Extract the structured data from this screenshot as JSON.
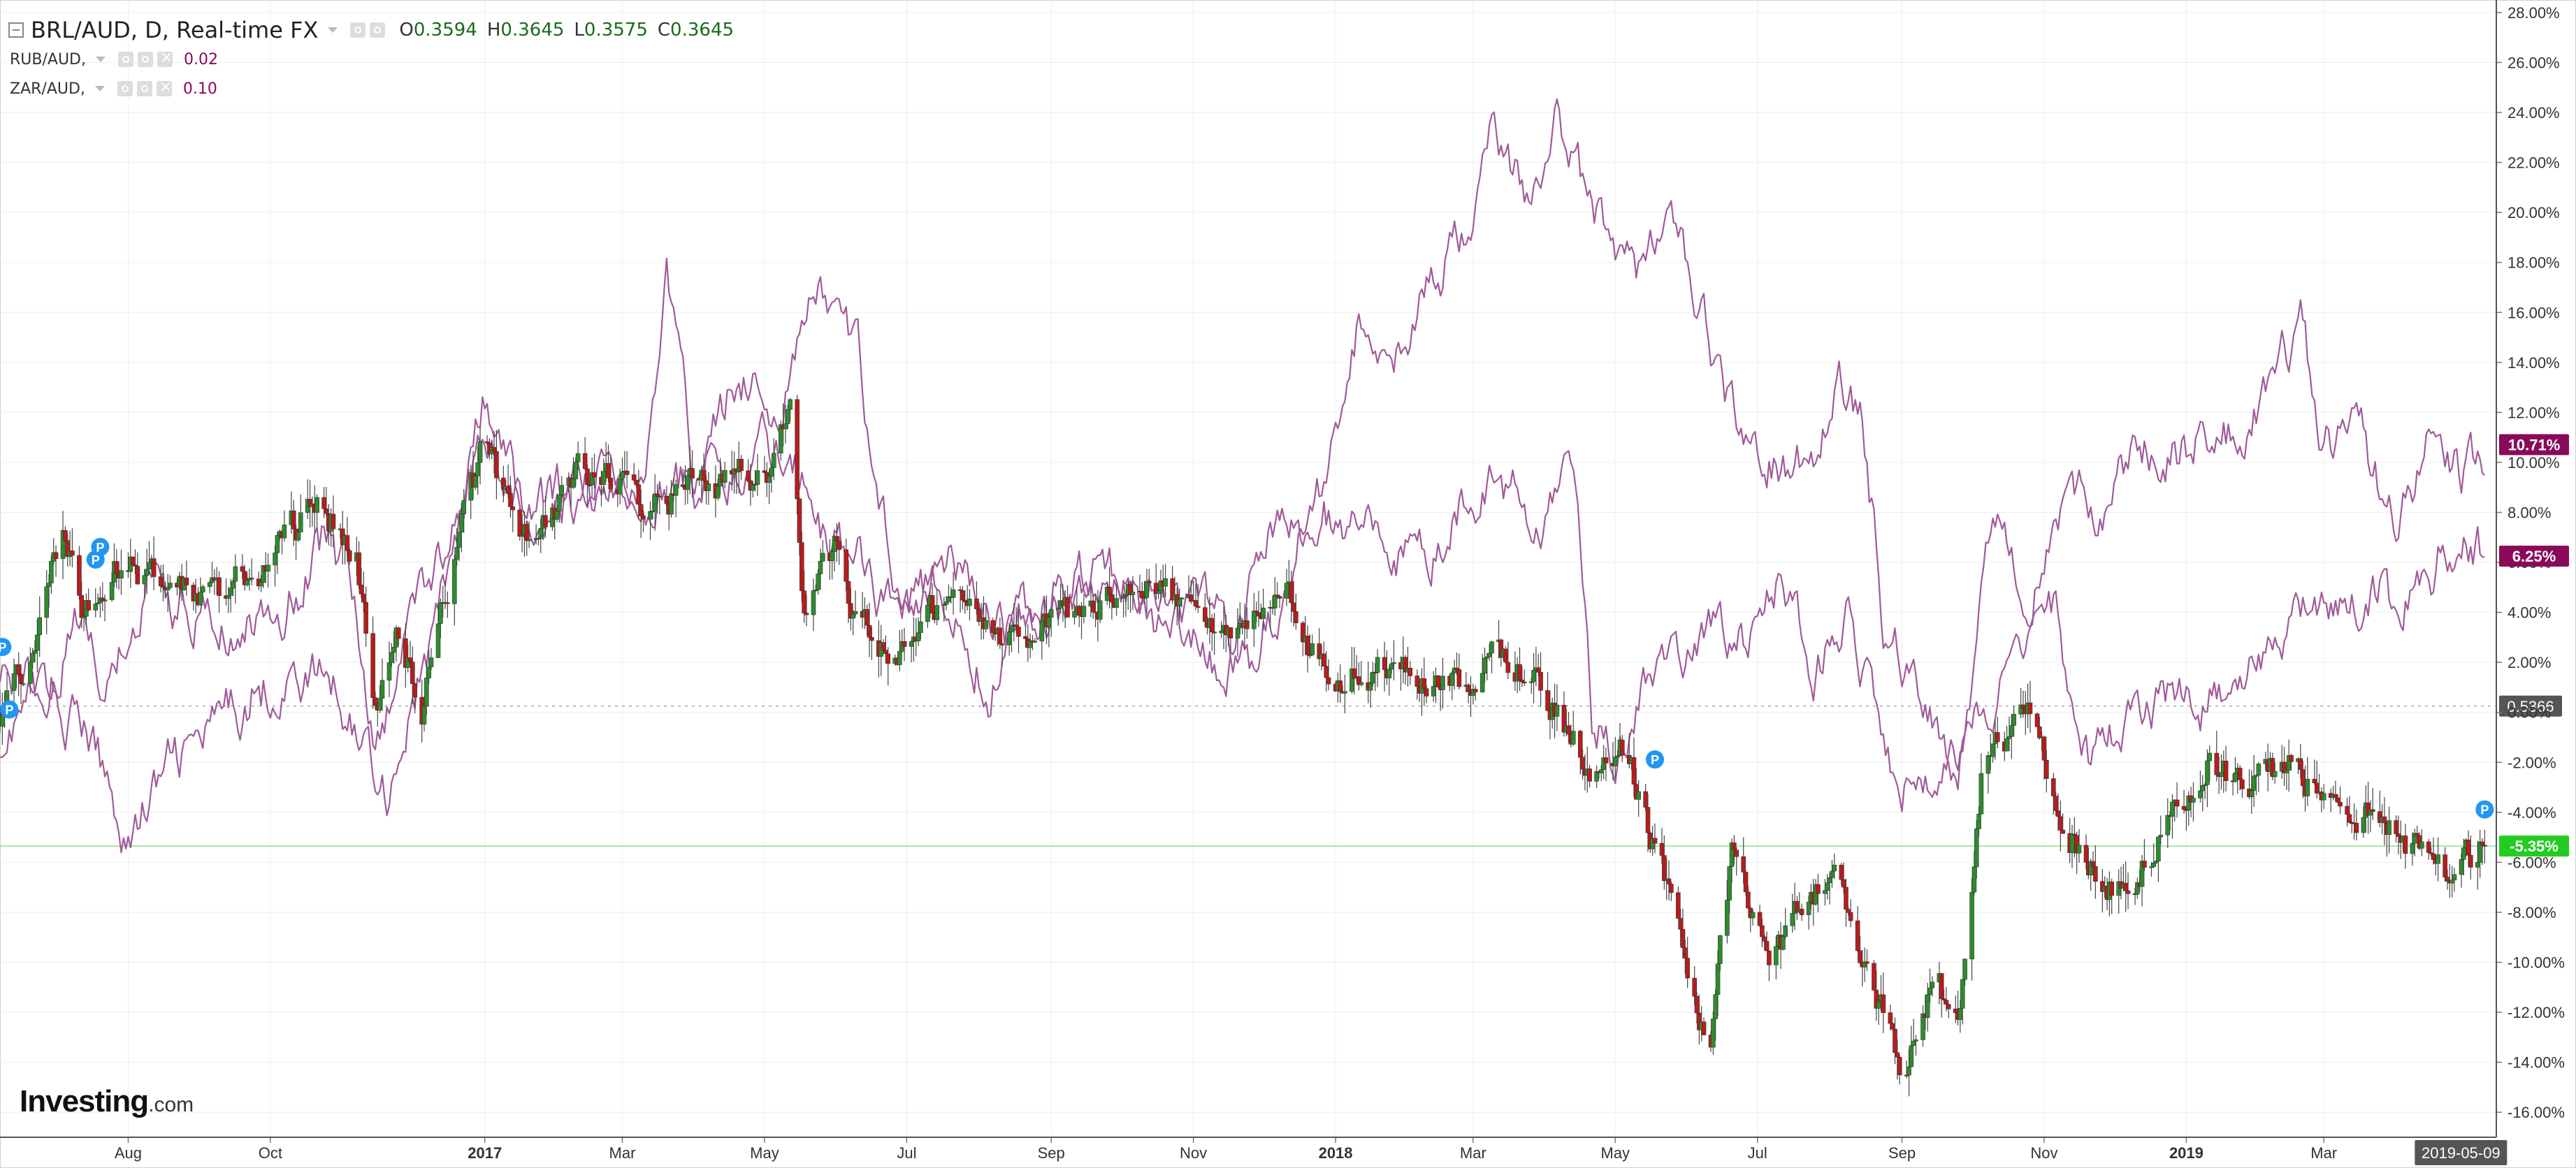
{
  "legend": {
    "title": "BRL/AUD, D, Real-time FX",
    "ohlc": [
      {
        "k": "O",
        "v": "0.3594"
      },
      {
        "k": "H",
        "v": "0.3645"
      },
      {
        "k": "L",
        "v": "0.3575"
      },
      {
        "k": "C",
        "v": "0.3645"
      }
    ],
    "indicators": [
      {
        "name": "RUB/AUD,",
        "value": "0.02"
      },
      {
        "name": "ZAR/AUD,",
        "value": "0.10"
      }
    ]
  },
  "logo": {
    "brand": "Investing",
    "suffix": ".com"
  },
  "colors": {
    "up": "#2e8b2e",
    "down": "#b81c1c",
    "compare": "#a05a9a",
    "lastTag": "#8a0a5a",
    "greenTag": "#22cc22",
    "grid": "#eeeeee"
  },
  "chart_data": {
    "type": "line",
    "ylim": [
      -17,
      28.5
    ],
    "y_ticks": [
      "28.00%",
      "26.00%",
      "24.00%",
      "22.00%",
      "20.00%",
      "18.00%",
      "16.00%",
      "14.00%",
      "12.00%",
      "10.00%",
      "8.00%",
      "6.00%",
      "4.00%",
      "2.00%",
      "0.00%",
      "-2.00%",
      "-4.00%",
      "-6.00%",
      "-8.00%",
      "-10.00%",
      "-12.00%",
      "-14.00%",
      "-16.00%"
    ],
    "x_ticks": [
      {
        "label": "Aug",
        "date": "2016-08-01",
        "bold": false
      },
      {
        "label": "Oct",
        "date": "2016-10-01",
        "bold": false
      },
      {
        "label": "2017",
        "date": "2017-01-01",
        "bold": true
      },
      {
        "label": "Mar",
        "date": "2017-03-01",
        "bold": false
      },
      {
        "label": "May",
        "date": "2017-05-01",
        "bold": false
      },
      {
        "label": "Jul",
        "date": "2017-07-01",
        "bold": false
      },
      {
        "label": "Sep",
        "date": "2017-09-01",
        "bold": false
      },
      {
        "label": "Nov",
        "date": "2017-11-01",
        "bold": false
      },
      {
        "label": "2018",
        "date": "2018-01-01",
        "bold": true
      },
      {
        "label": "Mar",
        "date": "2018-03-01",
        "bold": false
      },
      {
        "label": "May",
        "date": "2018-05-01",
        "bold": false
      },
      {
        "label": "Jul",
        "date": "2018-07-01",
        "bold": false
      },
      {
        "label": "Sep",
        "date": "2018-09-01",
        "bold": false
      },
      {
        "label": "Nov",
        "date": "2018-11-01",
        "bold": false
      },
      {
        "label": "2019",
        "date": "2019-01-01",
        "bold": true
      },
      {
        "label": "Mar",
        "date": "2019-03-01",
        "bold": false
      }
    ],
    "x_start": "2016-06-07",
    "x_end": "2019-05-14",
    "cursor_date_label": "2019-05-09",
    "price_line": {
      "value": 0.5366,
      "pct": 0.25,
      "label": "0.5366"
    },
    "last_tags": [
      {
        "label": "10.71%",
        "value": 10.71,
        "color": "#8a0a5a"
      },
      {
        "label": "6.25%",
        "value": 6.25,
        "color": "#8a0a5a"
      },
      {
        "label": "-5.35%",
        "value": -5.35,
        "color": "#22cc22"
      }
    ],
    "brl_candles_anchor": [
      [
        "2016-06-07",
        0
      ],
      [
        "2016-06-20",
        1.5
      ],
      [
        "2016-07-03",
        7.5
      ],
      [
        "2016-07-12",
        4
      ],
      [
        "2016-07-25",
        6
      ],
      [
        "2016-08-08",
        5.5
      ],
      [
        "2016-09-05",
        4.5
      ],
      [
        "2016-09-30",
        6
      ],
      [
        "2016-10-20",
        8.5
      ],
      [
        "2016-11-07",
        6.5
      ],
      [
        "2016-11-15",
        0.5
      ],
      [
        "2016-11-25",
        3
      ],
      [
        "2016-12-05",
        0.5
      ],
      [
        "2016-12-14",
        4
      ],
      [
        "2016-12-31",
        10.5
      ],
      [
        "2017-01-20",
        7
      ],
      [
        "2017-02-10",
        9.5
      ],
      [
        "2017-03-10",
        8.5
      ],
      [
        "2017-04-10",
        9
      ],
      [
        "2017-05-05",
        10
      ],
      [
        "2017-05-12",
        12
      ],
      [
        "2017-05-18",
        4
      ],
      [
        "2017-06-01",
        6.5
      ],
      [
        "2017-06-10",
        3.5
      ],
      [
        "2017-06-25",
        2.5
      ],
      [
        "2017-07-15",
        4.5
      ],
      [
        "2017-08-15",
        3
      ],
      [
        "2017-09-15",
        4
      ],
      [
        "2017-10-15",
        5.5
      ],
      [
        "2017-11-10",
        3
      ],
      [
        "2017-12-10",
        5.5
      ],
      [
        "2017-12-20",
        3
      ],
      [
        "2017-12-31",
        1.5
      ],
      [
        "2018-01-25",
        2
      ],
      [
        "2018-02-20",
        1
      ],
      [
        "2018-03-10",
        2.5
      ],
      [
        "2018-03-25",
        1.5
      ],
      [
        "2018-04-10",
        -0.5
      ],
      [
        "2018-04-20",
        -2
      ],
      [
        "2018-05-05",
        -1.5
      ],
      [
        "2018-05-20",
        -6
      ],
      [
        "2018-06-10",
        -13.5
      ],
      [
        "2018-06-20",
        -6
      ],
      [
        "2018-07-05",
        -10
      ],
      [
        "2018-07-20",
        -8
      ],
      [
        "2018-08-01",
        -6
      ],
      [
        "2018-08-15",
        -9.5
      ],
      [
        "2018-09-01",
        -14
      ],
      [
        "2018-09-15",
        -11
      ],
      [
        "2018-09-25",
        -12.5
      ],
      [
        "2018-10-05",
        -2.5
      ],
      [
        "2018-10-25",
        0
      ],
      [
        "2018-11-05",
        -3.5
      ],
      [
        "2018-11-25",
        -7
      ],
      [
        "2018-12-10",
        -6.5
      ],
      [
        "2018-12-25",
        -4.5
      ],
      [
        "2019-01-10",
        -2
      ],
      [
        "2019-01-25",
        -3
      ],
      [
        "2019-02-15",
        -2
      ],
      [
        "2019-03-01",
        -3
      ],
      [
        "2019-03-25",
        -4.5
      ],
      [
        "2019-04-10",
        -5.5
      ],
      [
        "2019-04-25",
        -6.5
      ],
      [
        "2019-05-09",
        -5.35
      ]
    ],
    "series": [
      {
        "color": "#a05a9a",
        "anchor": [
          [
            "2016-06-07",
            -1
          ],
          [
            "2016-06-25",
            1
          ],
          [
            "2016-07-15",
            -1
          ],
          [
            "2016-08-01",
            -5
          ],
          [
            "2016-08-20",
            -2
          ],
          [
            "2016-09-05",
            -1
          ],
          [
            "2016-09-25",
            1
          ],
          [
            "2016-10-25",
            1.5
          ],
          [
            "2016-11-10",
            -1
          ],
          [
            "2016-11-20",
            -3
          ],
          [
            "2016-12-10",
            3
          ],
          [
            "2016-12-31",
            12
          ],
          [
            "2017-01-20",
            8
          ],
          [
            "2017-02-20",
            10
          ],
          [
            "2017-03-10",
            9
          ],
          [
            "2017-03-20",
            17.5
          ],
          [
            "2017-04-01",
            9
          ],
          [
            "2017-04-20",
            14
          ],
          [
            "2017-05-05",
            12
          ],
          [
            "2017-05-18",
            15
          ],
          [
            "2017-05-25",
            17
          ],
          [
            "2017-06-10",
            14
          ],
          [
            "2017-06-25",
            6
          ],
          [
            "2017-07-10",
            5
          ],
          [
            "2017-07-25",
            3
          ],
          [
            "2017-08-05",
            1
          ],
          [
            "2017-08-20",
            4
          ],
          [
            "2017-09-20",
            5
          ],
          [
            "2017-10-20",
            4
          ],
          [
            "2017-11-10",
            4
          ],
          [
            "2017-11-25",
            2
          ],
          [
            "2017-12-10",
            5
          ],
          [
            "2017-12-25",
            9
          ],
          [
            "2018-01-01",
            11
          ],
          [
            "2018-01-10",
            15
          ],
          [
            "2018-02-01",
            15
          ],
          [
            "2018-03-01",
            20
          ],
          [
            "2018-03-10",
            23
          ],
          [
            "2018-03-25",
            20.5
          ],
          [
            "2018-04-07",
            24
          ],
          [
            "2018-04-20",
            20
          ],
          [
            "2018-05-10",
            18
          ],
          [
            "2018-05-25",
            19.5
          ],
          [
            "2018-06-10",
            15
          ],
          [
            "2018-06-25",
            10.5
          ],
          [
            "2018-07-10",
            10
          ],
          [
            "2018-07-25",
            10.5
          ],
          [
            "2018-08-05",
            13.5
          ],
          [
            "2018-08-15",
            12
          ],
          [
            "2018-08-25",
            3
          ],
          [
            "2018-09-10",
            1
          ],
          [
            "2018-09-25",
            -2.5
          ],
          [
            "2018-10-10",
            8
          ],
          [
            "2018-10-25",
            5
          ],
          [
            "2018-11-10",
            9
          ],
          [
            "2018-11-25",
            8
          ],
          [
            "2018-12-10",
            11
          ],
          [
            "2018-12-25",
            10
          ],
          [
            "2019-01-10",
            11
          ],
          [
            "2019-01-25",
            11
          ],
          [
            "2019-02-10",
            14
          ],
          [
            "2019-02-20",
            15.5
          ],
          [
            "2019-03-01",
            10.5
          ],
          [
            "2019-03-15",
            11
          ],
          [
            "2019-04-01",
            8
          ],
          [
            "2019-04-15",
            11
          ],
          [
            "2019-04-30",
            9.5
          ],
          [
            "2019-05-09",
            10.71
          ]
        ]
      },
      {
        "color": "#a05a9a",
        "anchor": [
          [
            "2016-06-07",
            2
          ],
          [
            "2016-06-25",
            1
          ],
          [
            "2016-07-10",
            3.5
          ],
          [
            "2016-07-25",
            1
          ],
          [
            "2016-08-10",
            5
          ],
          [
            "2016-08-25",
            4
          ],
          [
            "2016-09-15",
            3
          ],
          [
            "2016-10-05",
            4
          ],
          [
            "2016-10-25",
            7
          ],
          [
            "2016-11-05",
            5
          ],
          [
            "2016-11-15",
            -1
          ],
          [
            "2016-12-05",
            5
          ],
          [
            "2016-12-31",
            10.5
          ],
          [
            "2017-01-20",
            8
          ],
          [
            "2017-02-20",
            9
          ],
          [
            "2017-03-20",
            9
          ],
          [
            "2017-04-20",
            9.5
          ],
          [
            "2017-05-10",
            11
          ],
          [
            "2017-05-25",
            7
          ],
          [
            "2017-06-10",
            6
          ],
          [
            "2017-06-25",
            4
          ],
          [
            "2017-07-10",
            5
          ],
          [
            "2017-07-20",
            6
          ],
          [
            "2017-07-30",
            5
          ],
          [
            "2017-08-15",
            3
          ],
          [
            "2017-09-05",
            5
          ],
          [
            "2017-09-25",
            6
          ],
          [
            "2017-10-15",
            3
          ],
          [
            "2017-10-30",
            3
          ],
          [
            "2017-11-15",
            1.5
          ],
          [
            "2017-11-30",
            7
          ],
          [
            "2017-12-15",
            7.5
          ],
          [
            "2017-12-31",
            8
          ],
          [
            "2018-01-20",
            7
          ],
          [
            "2018-02-10",
            6
          ],
          [
            "2018-02-28",
            9
          ],
          [
            "2018-03-15",
            9
          ],
          [
            "2018-04-01",
            7.5
          ],
          [
            "2018-04-14",
            9.5
          ],
          [
            "2018-04-21",
            0
          ],
          [
            "2018-05-01",
            -1.5
          ],
          [
            "2018-05-15",
            2
          ],
          [
            "2018-05-31",
            2
          ],
          [
            "2018-06-15",
            3.5
          ],
          [
            "2018-07-01",
            3
          ],
          [
            "2018-07-10",
            5
          ],
          [
            "2018-07-25",
            2
          ],
          [
            "2018-08-10",
            4
          ],
          [
            "2018-08-20",
            0
          ],
          [
            "2018-08-31",
            -3
          ],
          [
            "2018-09-15",
            -3.5
          ],
          [
            "2018-09-25",
            -2
          ],
          [
            "2018-10-10",
            0
          ],
          [
            "2018-10-25",
            4
          ],
          [
            "2018-11-05",
            4
          ],
          [
            "2018-11-20",
            -2
          ],
          [
            "2018-12-05",
            0
          ],
          [
            "2018-12-20",
            0.5
          ],
          [
            "2019-01-05",
            0
          ],
          [
            "2019-01-20",
            1
          ],
          [
            "2019-02-05",
            2
          ],
          [
            "2019-02-20",
            3.5
          ],
          [
            "2019-03-10",
            4
          ],
          [
            "2019-03-25",
            5.5
          ],
          [
            "2019-04-01",
            4
          ],
          [
            "2019-04-15",
            5.5
          ],
          [
            "2019-04-25",
            7
          ],
          [
            "2019-05-09",
            6.25
          ]
        ]
      }
    ]
  }
}
